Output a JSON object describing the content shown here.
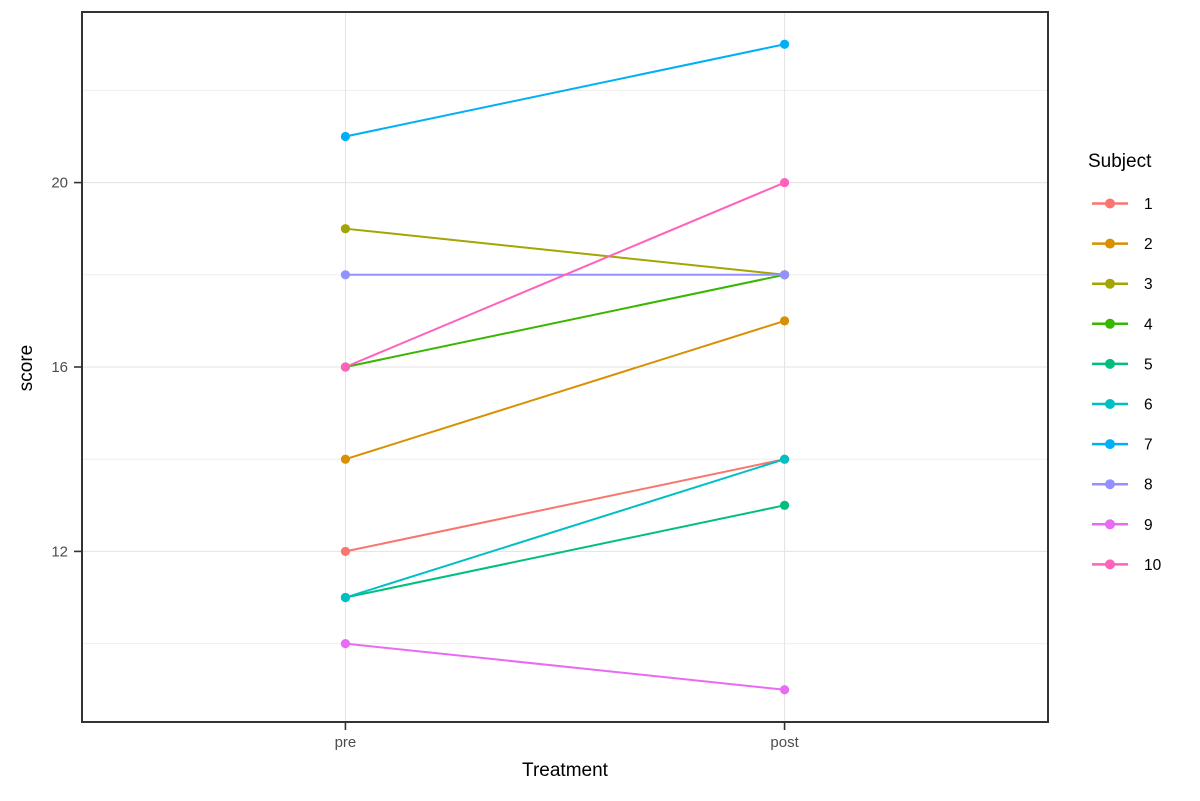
{
  "chart_data": {
    "type": "line",
    "xlabel": "Treatment",
    "ylabel": "score",
    "categories": [
      "pre",
      "post"
    ],
    "y_ticks": [
      12,
      16,
      20
    ],
    "y_minor_ticks": [
      10,
      14,
      18,
      22
    ],
    "ylim": [
      8.3,
      23.7
    ],
    "grid": true,
    "legend_title": "Subject",
    "legend_position": "right",
    "series": [
      {
        "name": "1",
        "color": "#F8766D",
        "values": [
          12,
          14
        ]
      },
      {
        "name": "2",
        "color": "#D89000",
        "values": [
          14,
          17
        ]
      },
      {
        "name": "3",
        "color": "#A3A500",
        "values": [
          19,
          18
        ]
      },
      {
        "name": "4",
        "color": "#39B600",
        "values": [
          16,
          18
        ]
      },
      {
        "name": "5",
        "color": "#00BF7D",
        "values": [
          11,
          13
        ]
      },
      {
        "name": "6",
        "color": "#00BFC4",
        "values": [
          11,
          14
        ]
      },
      {
        "name": "7",
        "color": "#00B0F6",
        "values": [
          21,
          23
        ]
      },
      {
        "name": "8",
        "color": "#9590FF",
        "values": [
          18,
          18
        ]
      },
      {
        "name": "9",
        "color": "#E76BF3",
        "values": [
          10,
          9
        ]
      },
      {
        "name": "10",
        "color": "#FF62BC",
        "values": [
          16,
          20
        ]
      }
    ],
    "style_colors": {
      "panel_border": "#333333",
      "grid_major": "#E3E3E3",
      "grid_minor": "#EDEDED",
      "tick_mark": "#333333",
      "tick_label": "#4D4D4D",
      "axis_title": "#000000",
      "legend_text": "#000000",
      "background": "#FFFFFF"
    }
  }
}
